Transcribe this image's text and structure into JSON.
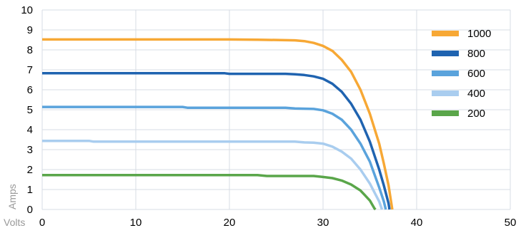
{
  "chart_data": {
    "type": "line",
    "title": "",
    "xlabel": "Volts",
    "ylabel": "Amps",
    "xlim": [
      0,
      50
    ],
    "ylim": [
      0,
      10
    ],
    "x_ticks": [
      0,
      10,
      20,
      30,
      40,
      50
    ],
    "y_ticks": [
      0,
      1,
      2,
      3,
      4,
      5,
      6,
      7,
      8,
      9,
      10
    ],
    "grid": true,
    "legend_position": "right",
    "series": [
      {
        "name": "1000",
        "color": "#f7a835",
        "points": [
          [
            0,
            8.52
          ],
          [
            10,
            8.52
          ],
          [
            20,
            8.52
          ],
          [
            23,
            8.51
          ],
          [
            27,
            8.48
          ],
          [
            28,
            8.44
          ],
          [
            29,
            8.35
          ],
          [
            30,
            8.2
          ],
          [
            31,
            7.95
          ],
          [
            32,
            7.5
          ],
          [
            33,
            6.9
          ],
          [
            34,
            6.0
          ],
          [
            35,
            4.8
          ],
          [
            36,
            3.3
          ],
          [
            36.5,
            2.3
          ],
          [
            37,
            1.2
          ],
          [
            37.3,
            0.3
          ],
          [
            37.4,
            0
          ]
        ]
      },
      {
        "name": "800",
        "color": "#1f63b0",
        "points": [
          [
            0,
            6.83
          ],
          [
            10,
            6.83
          ],
          [
            19.5,
            6.83
          ],
          [
            20,
            6.8
          ],
          [
            26,
            6.8
          ],
          [
            27,
            6.78
          ],
          [
            28,
            6.74
          ],
          [
            29,
            6.67
          ],
          [
            30,
            6.55
          ],
          [
            31,
            6.3
          ],
          [
            32,
            5.9
          ],
          [
            33,
            5.3
          ],
          [
            34,
            4.5
          ],
          [
            35,
            3.4
          ],
          [
            36,
            2.0
          ],
          [
            36.5,
            1.2
          ],
          [
            37,
            0.3
          ],
          [
            37.1,
            0
          ]
        ]
      },
      {
        "name": "600",
        "color": "#5aa3dc",
        "points": [
          [
            0,
            5.14
          ],
          [
            15,
            5.14
          ],
          [
            15.5,
            5.1
          ],
          [
            26,
            5.1
          ],
          [
            27,
            5.06
          ],
          [
            29,
            5.04
          ],
          [
            30,
            4.97
          ],
          [
            31,
            4.8
          ],
          [
            32,
            4.5
          ],
          [
            33,
            4.0
          ],
          [
            34,
            3.3
          ],
          [
            35,
            2.4
          ],
          [
            36,
            1.1
          ],
          [
            36.5,
            0.4
          ],
          [
            36.7,
            0
          ]
        ]
      },
      {
        "name": "400",
        "color": "#a9cdef",
        "points": [
          [
            0,
            3.44
          ],
          [
            5,
            3.44
          ],
          [
            5.5,
            3.4
          ],
          [
            27,
            3.4
          ],
          [
            28,
            3.36
          ],
          [
            29,
            3.35
          ],
          [
            30,
            3.3
          ],
          [
            31,
            3.15
          ],
          [
            32,
            2.9
          ],
          [
            33,
            2.55
          ],
          [
            34,
            2.0
          ],
          [
            35,
            1.3
          ],
          [
            36,
            0.4
          ],
          [
            36.3,
            0
          ]
        ]
      },
      {
        "name": "200",
        "color": "#5aa64a",
        "points": [
          [
            0,
            1.72
          ],
          [
            23,
            1.72
          ],
          [
            24,
            1.68
          ],
          [
            29,
            1.68
          ],
          [
            30,
            1.63
          ],
          [
            31,
            1.57
          ],
          [
            32,
            1.45
          ],
          [
            33,
            1.25
          ],
          [
            34,
            0.95
          ],
          [
            35,
            0.45
          ],
          [
            35.5,
            0.05
          ],
          [
            35.6,
            0
          ]
        ]
      }
    ]
  }
}
